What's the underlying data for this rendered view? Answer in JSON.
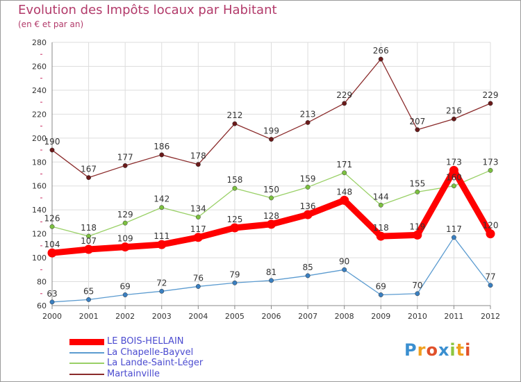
{
  "header": {
    "title": "Evolution des Impôts locaux par Habitant",
    "subtitle": "(en € et par an)"
  },
  "logo": {
    "text": "Proxiti",
    "letters": [
      "P",
      "r",
      "o",
      "x",
      "i",
      "t",
      "i"
    ],
    "colors": [
      "#3a8fd0",
      "#f0a020",
      "#e0502a",
      "#3a8fd0",
      "#8cc63f",
      "#f0a020",
      "#e0502a"
    ]
  },
  "colors": {
    "title": "#b23a6a",
    "axis": "#888888",
    "grid": "#dddddd",
    "tick_minor": "#cc3366"
  },
  "chart_data": {
    "type": "line",
    "title": "Evolution des Impôts locaux par Habitant",
    "subtitle": "(en € et par an)",
    "xlabel": "",
    "ylabel": "",
    "x": [
      "2000",
      "2001",
      "2002",
      "2003",
      "2004",
      "2005",
      "2006",
      "2007",
      "2008",
      "2009",
      "2010",
      "2011",
      "2012"
    ],
    "ylim": [
      60,
      280
    ],
    "yticks": [
      60,
      80,
      100,
      120,
      140,
      160,
      180,
      200,
      220,
      240,
      260,
      280
    ],
    "grid": true,
    "legend_position": "bottom-left",
    "series": [
      {
        "name": "LE BOIS-HELLAIN",
        "values": [
          104,
          107,
          109,
          111,
          117,
          125,
          128,
          136,
          148,
          118,
          119,
          173,
          120
        ],
        "labels": [
          "104",
          "107",
          "109",
          "111",
          "117",
          "125",
          "128",
          "136",
          "148",
          "118",
          "119",
          "173",
          "120"
        ],
        "color": "#ff0000",
        "marker_color": "#ff0000",
        "thick": true
      },
      {
        "name": "La Chapelle-Bayvel",
        "values": [
          63,
          65,
          69,
          72,
          76,
          79,
          81,
          85,
          90,
          69,
          70,
          117,
          77
        ],
        "labels": [
          "63",
          "65",
          "69",
          "72",
          "76",
          "79",
          "81",
          "85",
          "90",
          "69",
          "70",
          "117",
          "77"
        ],
        "color": "#5b9bd0",
        "marker_color": "#3a7fc0",
        "thick": false
      },
      {
        "name": "La Lande-Saint-Léger",
        "values": [
          126,
          118,
          129,
          142,
          134,
          158,
          150,
          159,
          171,
          144,
          155,
          160,
          173
        ],
        "labels": [
          "126",
          "118",
          "129",
          "142",
          "134",
          "158",
          "150",
          "159",
          "171",
          "144",
          "155",
          "160",
          "173"
        ],
        "color": "#99d066",
        "marker_color": "#7cc040",
        "thick": false
      },
      {
        "name": "Martainville",
        "values": [
          190,
          167,
          177,
          186,
          178,
          212,
          199,
          213,
          229,
          266,
          207,
          216,
          229
        ],
        "labels": [
          "190",
          "167",
          "177",
          "186",
          "178",
          "212",
          "199",
          "213",
          "229",
          "266",
          "207",
          "216",
          "229"
        ],
        "color": "#8a2a2a",
        "marker_color": "#6a1a1a",
        "thick": false
      }
    ]
  }
}
